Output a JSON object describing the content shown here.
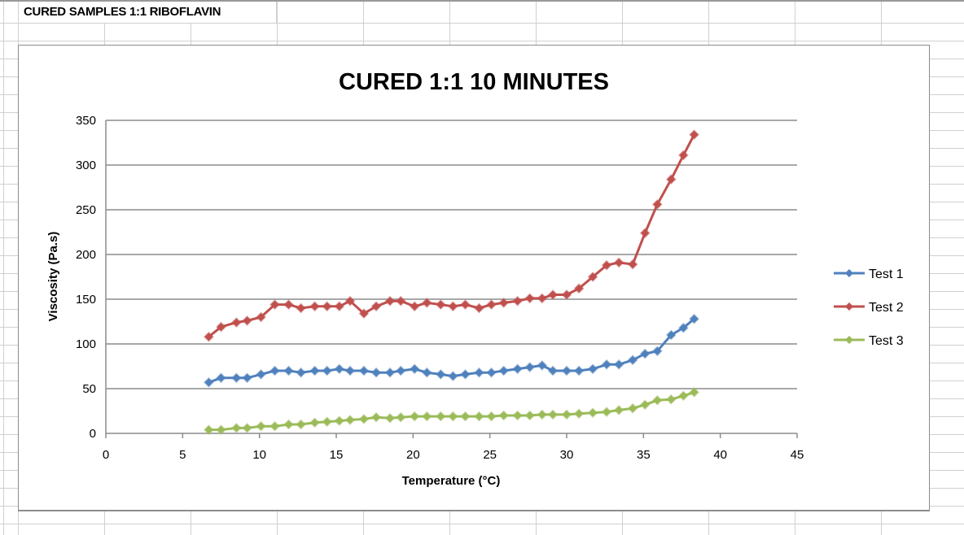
{
  "sheet": {
    "title_cell": "CURED SAMPLES 1:1 RIBOFLAVIN"
  },
  "chart_data": {
    "type": "line",
    "title": "CURED 1:1 10 MINUTES",
    "xlabel": "Temperature (°C)",
    "ylabel": "Viscosity (Pa.s)",
    "xlim": [
      0,
      45
    ],
    "ylim": [
      0,
      350
    ],
    "xticks": [
      0,
      5,
      10,
      15,
      20,
      25,
      30,
      35,
      40,
      45
    ],
    "yticks": [
      0,
      50,
      100,
      150,
      200,
      250,
      300,
      350
    ],
    "grid": "horizontal",
    "legend_position": "right",
    "x": [
      6.7,
      7.5,
      8.5,
      9.2,
      10.1,
      11.0,
      11.9,
      12.7,
      13.6,
      14.4,
      15.2,
      15.9,
      16.8,
      17.6,
      18.5,
      19.2,
      20.1,
      20.9,
      21.8,
      22.6,
      23.4,
      24.3,
      25.1,
      25.9,
      26.8,
      27.6,
      28.4,
      29.1,
      30.0,
      30.8,
      31.7,
      32.6,
      33.4,
      34.3,
      35.1,
      35.9,
      36.8,
      37.6,
      38.3
    ],
    "series": [
      {
        "name": "Test 1",
        "color": "#4f81bd",
        "values": [
          57,
          62,
          62,
          62,
          66,
          70,
          70,
          68,
          70,
          70,
          72,
          70,
          70,
          68,
          68,
          70,
          72,
          68,
          66,
          64,
          66,
          68,
          68,
          70,
          72,
          74,
          76,
          70,
          70,
          70,
          72,
          77,
          77,
          82,
          89,
          92,
          110,
          118,
          128
        ]
      },
      {
        "name": "Test 2",
        "color": "#c0504d",
        "values": [
          108,
          119,
          124,
          126,
          130,
          144,
          144,
          140,
          142,
          142,
          142,
          148,
          134,
          142,
          148,
          148,
          142,
          146,
          144,
          142,
          144,
          140,
          144,
          146,
          148,
          151,
          151,
          155,
          155,
          162,
          175,
          188,
          191,
          189,
          224,
          256,
          284,
          311,
          334
        ]
      },
      {
        "name": "Test 3",
        "color": "#9bbb59",
        "values": [
          4,
          4,
          6,
          6,
          8,
          8,
          10,
          10,
          12,
          13,
          14,
          15,
          16,
          18,
          17,
          18,
          19,
          19,
          19,
          19,
          19,
          19,
          19,
          20,
          20,
          20,
          21,
          21,
          21,
          22,
          23,
          24,
          26,
          28,
          32,
          37,
          38,
          42,
          46
        ]
      }
    ]
  }
}
